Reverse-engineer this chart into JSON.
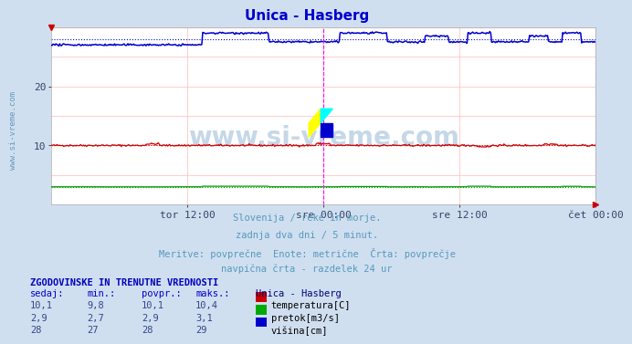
{
  "title": "Unica - Hasberg",
  "title_color": "#0000cc",
  "bg_color": "#d0dff0",
  "plot_bg_color": "#ffffff",
  "grid_color": "#ffbbbb",
  "vgrid_color": "#ffbbbb",
  "xlabel_ticks": [
    "tor 12:00",
    "sre 00:00",
    "sre 12:00",
    "čet 00:00"
  ],
  "xlabel_tick_positions": [
    0.25,
    0.5,
    0.75,
    1.0
  ],
  "yticks": [
    10,
    20
  ],
  "ylim": [
    0,
    30
  ],
  "subtitle_lines": [
    "Slovenija / reke in morje.",
    "zadnja dva dni / 5 minut.",
    "Meritve: povprečne  Enote: metrične  Črta: povprečje",
    "navpična črta - razdelek 24 ur"
  ],
  "subtitle_color": "#5599bb",
  "table_header": "ZGODOVINSKE IN TRENUTNE VREDNOSTI",
  "table_header_color": "#0000bb",
  "col_headers": [
    "sedaj:",
    "min.:",
    "povpr.:",
    "maks.:"
  ],
  "col_header_color": "#0000cc",
  "station_label": "Unica - Hasberg",
  "station_color": "#000077",
  "rows": [
    {
      "sedaj": "10,1",
      "min": "9,8",
      "povpr": "10,1",
      "maks": "10,4",
      "color": "#cc0000",
      "label": "temperatura[C]"
    },
    {
      "sedaj": "2,9",
      "min": "2,7",
      "povpr": "2,9",
      "maks": "3,1",
      "color": "#00aa00",
      "label": "pretok[m3/s]"
    },
    {
      "sedaj": "28",
      "min": "27",
      "povpr": "28",
      "maks": "29",
      "color": "#0000cc",
      "label": "višina[cm]"
    }
  ],
  "watermark": "www.si-vreme.com",
  "watermark_color": "#c5d8e8",
  "n_points": 576,
  "temp_color": "#cc0000",
  "flow_color": "#009900",
  "height_color": "#0000cc",
  "vline_color": "#ff00ff",
  "sidewatermark_color": "#6699bb"
}
